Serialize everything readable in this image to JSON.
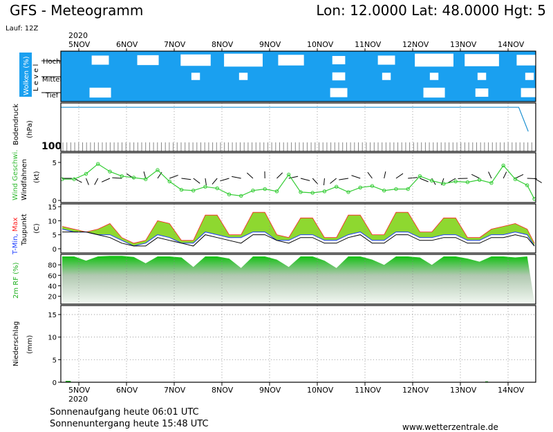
{
  "header": {
    "title": "GFS - Meteogramm",
    "location": "Lon: 12.0000 Lat: 48.0000 Hgt: 5",
    "run": "Lauf: 12Z"
  },
  "year_label": "2020",
  "days": [
    "5NOV",
    "6NOV",
    "7NOV",
    "8NOV",
    "9NOV",
    "10NOV",
    "11NOV",
    "12NOV",
    "13NOV",
    "14NOV"
  ],
  "footer": {
    "sunrise": "Sonnenaufgang heute 06:01 UTC",
    "sunset": "Sonnenuntergang heute 15:48 UTC",
    "site": "www.wetterzentrale.de"
  },
  "colors": {
    "cloud_sky": "#1aa0f0",
    "cloud": "#ffffff",
    "pressure_line": "#1a8fd0",
    "wind_line": "#33cc33",
    "tmax": "#ff2020",
    "tmin": "#2040ff",
    "dew": "#000000",
    "humidity": "#20b020",
    "temp_fill_top": "#e8e000",
    "temp_fill_bottom": "#20c020"
  },
  "chart_data": [
    {
      "type": "heatmap",
      "panel": "clouds",
      "ylabel": "Wolken (%)",
      "level_title": "L e v e l",
      "levels": [
        "Hoch",
        "Mittel",
        "Tief"
      ],
      "x_days": [
        0,
        1,
        2,
        3,
        4,
        5,
        6,
        7,
        8,
        9,
        10
      ],
      "cloud_cover": {
        "Hoch": [
          0.6,
          0.5,
          0.3,
          0.1,
          0.4,
          0.7,
          0.6,
          0.1,
          0.2,
          0.4
        ],
        "Mittel": [
          0.9,
          0.9,
          0.8,
          0.8,
          0.9,
          0.7,
          0.8,
          0.8,
          0.8,
          0.8
        ],
        "Tief": [
          0.5,
          0.9,
          0.9,
          0.9,
          0.9,
          0.6,
          0.9,
          0.5,
          0.7,
          0.6
        ]
      }
    },
    {
      "type": "line",
      "panel": "pressure",
      "ylabel": "Bodendruck",
      "unit": "(hPa)",
      "axis_label": "100",
      "x_days": [
        0,
        1,
        2,
        3,
        4,
        5,
        6,
        7,
        8,
        9,
        9.6,
        9.8
      ],
      "values": [
        1029,
        1029,
        1029,
        1029,
        1029,
        1029,
        1029,
        1029,
        1029,
        1029,
        1029,
        1012
      ],
      "ylim": [
        1000,
        1030
      ]
    },
    {
      "type": "line",
      "panel": "wind",
      "ylabel": "Wind Geschwi.",
      "ylabel2": "Windfahnen",
      "unit": "(kt)",
      "yticks": [
        0,
        5
      ],
      "ylim": [
        0,
        6
      ],
      "x_days": [
        0,
        0.25,
        0.5,
        0.75,
        1,
        1.25,
        1.5,
        1.75,
        2,
        2.25,
        2.5,
        2.75,
        3,
        3.25,
        3.5,
        3.75,
        4,
        4.25,
        4.5,
        4.75,
        5,
        5.25,
        5.5,
        5.75,
        6,
        6.25,
        6.5,
        6.75,
        7,
        7.25,
        7.5,
        7.75,
        8,
        8.25,
        8.5,
        8.75,
        9,
        9.25,
        9.5,
        9.75,
        9.9
      ],
      "values": [
        2.8,
        2.8,
        3.5,
        4.8,
        3.8,
        3.2,
        3.0,
        2.8,
        4.0,
        2.5,
        1.4,
        1.3,
        1.8,
        1.6,
        0.8,
        0.6,
        1.3,
        1.5,
        1.2,
        3.4,
        1.1,
        1.0,
        1.2,
        1.8,
        1.1,
        1.7,
        1.9,
        1.3,
        1.5,
        1.5,
        3.2,
        2.6,
        2.2,
        2.5,
        2.4,
        2.7,
        2.3,
        4.6,
        2.8,
        2.0,
        0.2
      ]
    },
    {
      "type": "area",
      "panel": "temperature",
      "ylabel_parts": [
        "T-Min,",
        "Max"
      ],
      "ylabel2": "Taupunkt",
      "unit": "(C)",
      "yticks": [
        0,
        5,
        10,
        15
      ],
      "ylim": [
        -1,
        15.5
      ],
      "x_days": [
        0,
        0.25,
        0.5,
        0.75,
        1,
        1.25,
        1.5,
        1.75,
        2,
        2.25,
        2.5,
        2.75,
        3,
        3.25,
        3.5,
        3.75,
        4,
        4.25,
        4.5,
        4.75,
        5,
        5.25,
        5.5,
        5.75,
        6,
        6.25,
        6.5,
        6.75,
        7,
        7.25,
        7.5,
        7.75,
        8,
        8.25,
        8.5,
        8.75,
        9,
        9.25,
        9.5,
        9.75,
        9.9
      ],
      "series": [
        {
          "name": "T-Max",
          "values": [
            8,
            7,
            6,
            7,
            9,
            4,
            2,
            3,
            10,
            9,
            3,
            3,
            12,
            12,
            5,
            5,
            13,
            13,
            5,
            4,
            11,
            11,
            4,
            4,
            12,
            12,
            5,
            5,
            13,
            13,
            6,
            6,
            11,
            11,
            4,
            4,
            7,
            8,
            9,
            7,
            2
          ]
        },
        {
          "name": "T-Min",
          "values": [
            7,
            6,
            6,
            5,
            5,
            3,
            1,
            2,
            5,
            4,
            2,
            2,
            6,
            5,
            4,
            4,
            6,
            6,
            3,
            3,
            5,
            5,
            3,
            3,
            5,
            6,
            3,
            3,
            6,
            6,
            4,
            4,
            5,
            5,
            3,
            3,
            5,
            5,
            6,
            5,
            1
          ]
        },
        {
          "name": "Taupunkt",
          "values": [
            6,
            6,
            6,
            5,
            4,
            2,
            1,
            1,
            4,
            3,
            2,
            1,
            5,
            4,
            3,
            2,
            5,
            5,
            3,
            2,
            4,
            4,
            2,
            2,
            4,
            5,
            2,
            2,
            5,
            5,
            3,
            3,
            4,
            4,
            2,
            2,
            4,
            4,
            5,
            4,
            1
          ]
        }
      ]
    },
    {
      "type": "area",
      "panel": "humidity",
      "ylabel": "2m RF (%)",
      "yticks": [
        20,
        40,
        60,
        80
      ],
      "ylim": [
        5,
        100
      ],
      "x_days": [
        0,
        0.25,
        0.5,
        0.75,
        1,
        1.25,
        1.5,
        1.75,
        2,
        2.25,
        2.5,
        2.75,
        3,
        3.25,
        3.5,
        3.75,
        4,
        4.25,
        4.5,
        4.75,
        5,
        5.25,
        5.5,
        5.75,
        6,
        6.25,
        6.5,
        6.75,
        7,
        7.25,
        7.5,
        7.75,
        8,
        8.25,
        8.5,
        8.75,
        9,
        9.25,
        9.5,
        9.75,
        9.9
      ],
      "values": [
        96,
        96,
        88,
        96,
        97,
        97,
        95,
        83,
        96,
        96,
        94,
        76,
        96,
        96,
        92,
        74,
        96,
        96,
        90,
        76,
        96,
        96,
        88,
        74,
        96,
        96,
        90,
        80,
        96,
        96,
        94,
        80,
        96,
        96,
        92,
        86,
        96,
        96,
        94,
        96,
        10
      ]
    },
    {
      "type": "bar",
      "panel": "precipitation",
      "ylabel": "Niederschlag",
      "unit": "(mm)",
      "yticks": [
        0,
        5,
        10,
        15
      ],
      "ylim": [
        0,
        17
      ],
      "x_days": [
        0.1,
        0.15,
        8.9
      ],
      "values": [
        0.3,
        0.3,
        0.2
      ]
    }
  ]
}
